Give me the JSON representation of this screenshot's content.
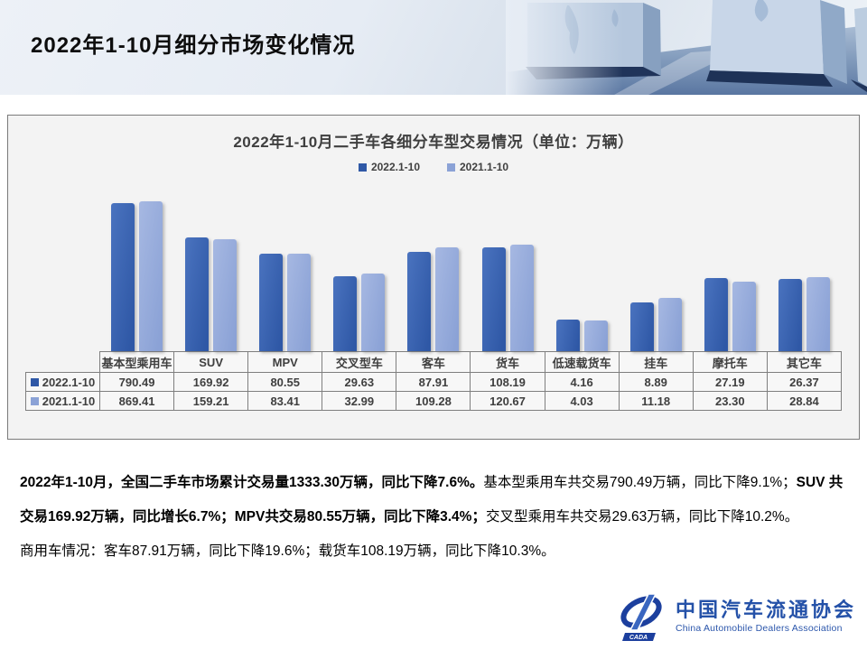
{
  "slide": {
    "title": "2022年1-10月细分市场变化情况"
  },
  "chart_data": {
    "type": "bar",
    "title": "2022年1-10月二手车各细分车型交易情况（单位：万辆）",
    "unit": "万辆",
    "categories": [
      "基本型乘用车",
      "SUV",
      "MPV",
      "交叉型车",
      "客车",
      "货车",
      "低速载货车",
      "挂车",
      "摩托车",
      "其它车"
    ],
    "series": [
      {
        "name": "2022.1-10",
        "color": "#2f58a6",
        "color_light": "#4a73bf",
        "values": [
          790.49,
          169.92,
          80.55,
          29.63,
          87.91,
          108.19,
          4.16,
          8.89,
          27.19,
          26.37
        ]
      },
      {
        "name": "2021.1-10",
        "color": "#8ba2d6",
        "color_light": "#a6b8e2",
        "values": [
          869.41,
          159.21,
          83.41,
          32.99,
          109.28,
          120.67,
          4.03,
          11.18,
          23.3,
          28.84
        ]
      }
    ],
    "yscale": "log",
    "grid": false,
    "legend_position": "top",
    "plot_background": "#f3f3f3"
  },
  "summary": {
    "paragraph1": [
      {
        "bold": true,
        "text": "2022年1-10月，全国二手车市场累计交易量1333.30万辆，同比下降7.6%。"
      },
      {
        "bold": false,
        "text": "基本型乘用车共交易790.49万辆，同比下降9.1%；"
      },
      {
        "bold": true,
        "text": "SUV 共交易169.92万辆，同比增长6.7%；MPV共交易80.55万辆，同比下降3.4%；"
      },
      {
        "bold": false,
        "text": "交叉型乘用车共交易29.63万辆，同比下降10.2%。"
      }
    ],
    "paragraph2": [
      {
        "bold": false,
        "text": "商用车情况：客车87.91万辆，同比下降19.6%；载货车108.19万辆，同比下降10.3%。"
      }
    ]
  },
  "logo": {
    "acronym": "CADA",
    "name_cn": "中国汽车流通协会",
    "name_en": "China Automobile Dealers Association",
    "brand_color": "#2451a8"
  }
}
